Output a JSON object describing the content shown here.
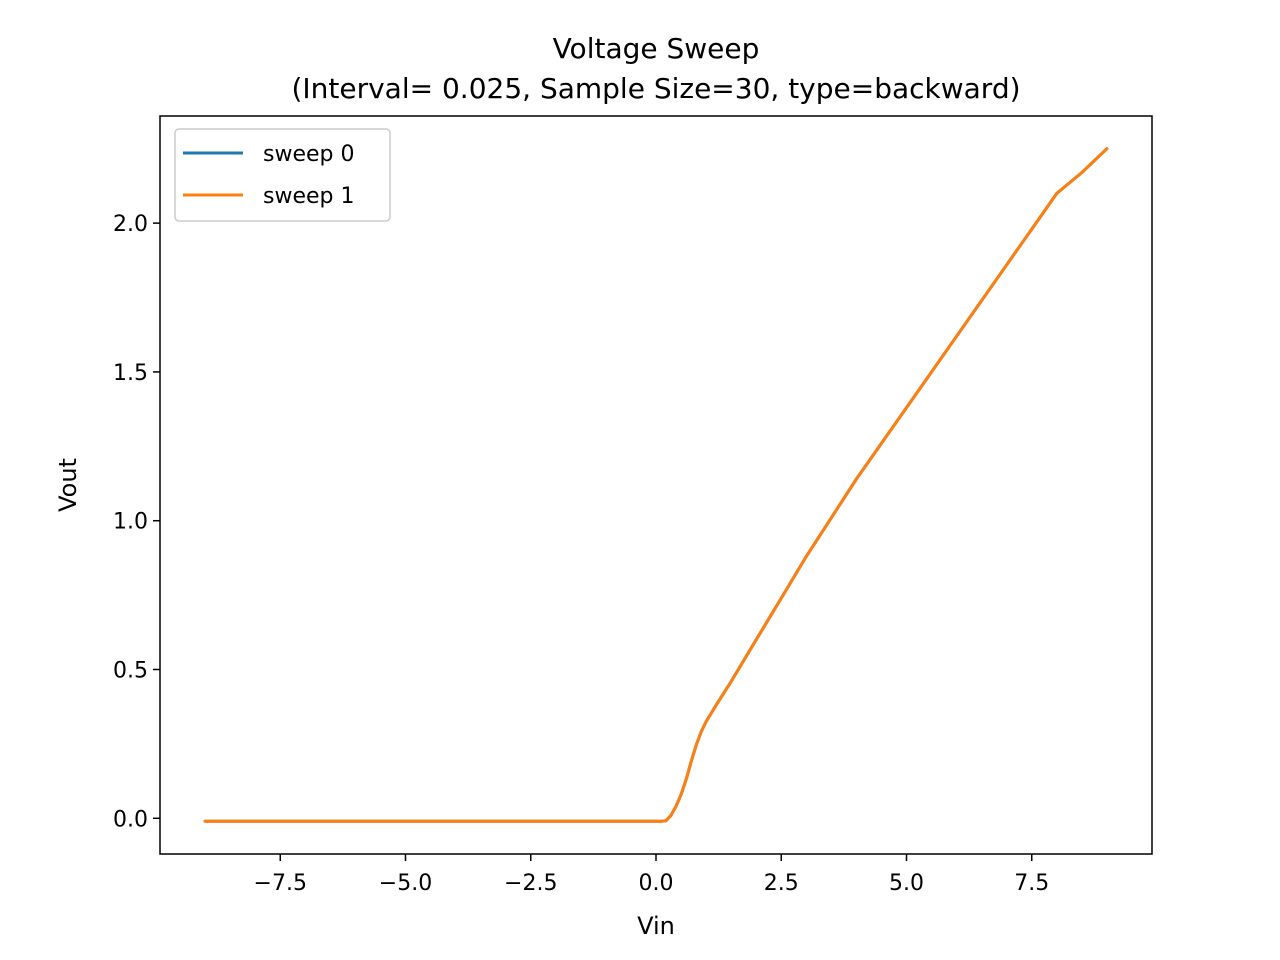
{
  "chart_data": {
    "type": "line",
    "title": "Voltage Sweep",
    "subtitle": "(Interval= 0.025, Sample Size=30, type=backward)",
    "xlabel": "Vin",
    "ylabel": "Vout",
    "xlim": [
      -9.9,
      9.9
    ],
    "ylim": [
      -0.12,
      2.36
    ],
    "xticks": [
      -7.5,
      -5.0,
      -2.5,
      0.0,
      2.5,
      5.0,
      7.5
    ],
    "xtick_labels": [
      "−7.5",
      "−5.0",
      "−2.5",
      "0.0",
      "2.5",
      "5.0",
      "7.5"
    ],
    "yticks": [
      0.0,
      0.5,
      1.0,
      1.5,
      2.0
    ],
    "ytick_labels": [
      "0.0",
      "0.5",
      "1.0",
      "1.5",
      "2.0"
    ],
    "grid": false,
    "legend": "upper-left",
    "series": [
      {
        "name": "sweep 0",
        "color": "#1f77b4",
        "x": [
          -9.0,
          -7.5,
          -5.0,
          -2.5,
          0.0,
          0.1,
          0.2,
          0.3,
          0.4,
          0.5,
          0.6,
          0.7,
          0.8,
          0.9,
          1.0,
          1.2,
          1.5,
          2.0,
          2.5,
          3.0,
          3.5,
          4.0,
          4.5,
          5.0,
          5.5,
          6.0,
          6.5,
          7.0,
          7.5,
          8.0,
          8.5,
          9.0
        ],
        "y": [
          -0.01,
          -0.01,
          -0.01,
          -0.01,
          -0.01,
          -0.01,
          -0.008,
          0.01,
          0.04,
          0.08,
          0.13,
          0.19,
          0.245,
          0.29,
          0.325,
          0.38,
          0.46,
          0.6,
          0.74,
          0.88,
          1.01,
          1.14,
          1.26,
          1.38,
          1.5,
          1.62,
          1.74,
          1.86,
          1.98,
          2.1,
          2.17,
          2.25
        ]
      },
      {
        "name": "sweep 1",
        "color": "#ff7f0e",
        "x": [
          -9.0,
          -7.5,
          -5.0,
          -2.5,
          0.0,
          0.1,
          0.2,
          0.3,
          0.4,
          0.5,
          0.6,
          0.7,
          0.8,
          0.9,
          1.0,
          1.2,
          1.5,
          2.0,
          2.5,
          3.0,
          3.5,
          4.0,
          4.5,
          5.0,
          5.5,
          6.0,
          6.5,
          7.0,
          7.5,
          8.0,
          8.5,
          9.0
        ],
        "y": [
          -0.01,
          -0.01,
          -0.01,
          -0.01,
          -0.01,
          -0.01,
          -0.008,
          0.01,
          0.04,
          0.08,
          0.13,
          0.19,
          0.245,
          0.29,
          0.325,
          0.38,
          0.46,
          0.6,
          0.74,
          0.88,
          1.01,
          1.14,
          1.26,
          1.38,
          1.5,
          1.62,
          1.74,
          1.86,
          1.98,
          2.1,
          2.17,
          2.25
        ]
      }
    ]
  }
}
